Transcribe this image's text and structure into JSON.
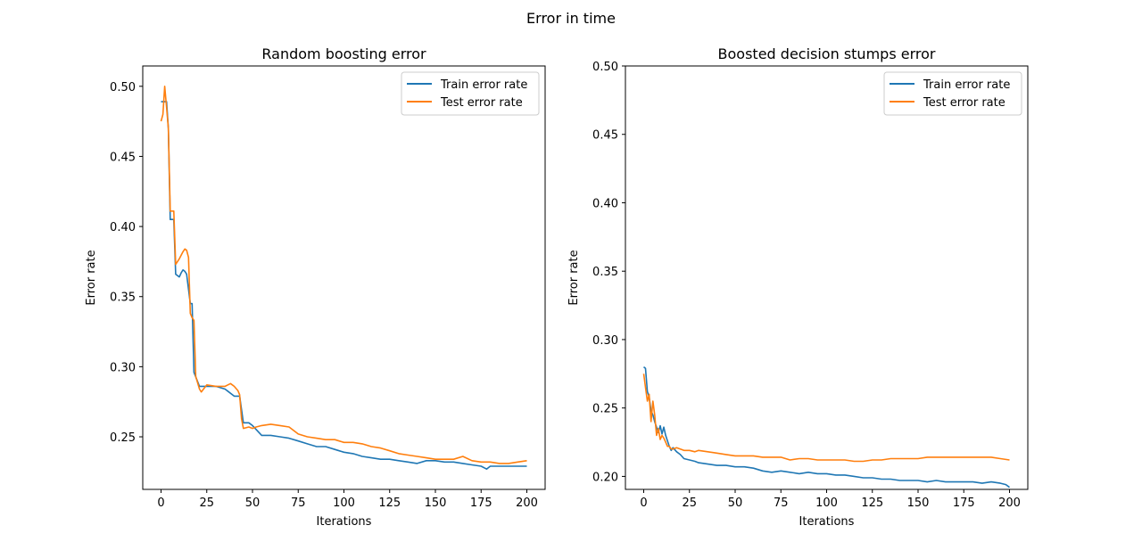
{
  "figure": {
    "suptitle": "Error in time"
  },
  "colors": {
    "train": "#1f77b4",
    "test": "#ff7f0e"
  },
  "chart_data": [
    {
      "type": "line",
      "title": "Random boosting error",
      "xlabel": "Iterations",
      "ylabel": "Error rate",
      "xlim": [
        -10,
        210
      ],
      "ylim": [
        0.2125,
        0.5145
      ],
      "xticks": [
        0,
        25,
        50,
        75,
        100,
        125,
        150,
        175,
        200
      ],
      "yticks": [
        0.25,
        0.3,
        0.35,
        0.4,
        0.45,
        0.5
      ],
      "ytick_labels": [
        "0.25",
        "0.30",
        "0.35",
        "0.40",
        "0.45",
        "0.50"
      ],
      "grid": false,
      "legend": "upper right",
      "series": [
        {
          "name": "Train error rate",
          "x": [
            0,
            3,
            4,
            5,
            7,
            8,
            10,
            11,
            12,
            13,
            14,
            16,
            17,
            18,
            21,
            25,
            30,
            35,
            40,
            43,
            45,
            48,
            50,
            55,
            60,
            65,
            70,
            75,
            80,
            85,
            90,
            95,
            100,
            105,
            110,
            115,
            120,
            125,
            130,
            135,
            140,
            145,
            150,
            155,
            160,
            165,
            170,
            175,
            178,
            180,
            185,
            190,
            195,
            200
          ],
          "y": [
            0.489,
            0.489,
            0.47,
            0.405,
            0.405,
            0.366,
            0.364,
            0.367,
            0.369,
            0.368,
            0.366,
            0.345,
            0.345,
            0.296,
            0.286,
            0.286,
            0.286,
            0.284,
            0.279,
            0.279,
            0.26,
            0.26,
            0.258,
            0.251,
            0.251,
            0.25,
            0.249,
            0.247,
            0.245,
            0.243,
            0.243,
            0.241,
            0.239,
            0.238,
            0.236,
            0.235,
            0.234,
            0.234,
            0.233,
            0.232,
            0.231,
            0.233,
            0.233,
            0.232,
            0.232,
            0.231,
            0.23,
            0.229,
            0.227,
            0.229,
            0.229,
            0.229,
            0.229,
            0.229
          ]
        },
        {
          "name": "Test error rate",
          "x": [
            0,
            1,
            2,
            3,
            4,
            5,
            7,
            8,
            10,
            12,
            13,
            14,
            15,
            16,
            17,
            18,
            19,
            21,
            22,
            25,
            30,
            35,
            38,
            40,
            42,
            43,
            44,
            45,
            48,
            50,
            52,
            55,
            60,
            65,
            70,
            75,
            80,
            85,
            90,
            95,
            100,
            105,
            110,
            115,
            120,
            125,
            130,
            135,
            140,
            145,
            150,
            155,
            160,
            165,
            170,
            175,
            180,
            185,
            190,
            195,
            200
          ],
          "y": [
            0.475,
            0.48,
            0.5,
            0.485,
            0.47,
            0.411,
            0.411,
            0.373,
            0.377,
            0.382,
            0.384,
            0.383,
            0.378,
            0.338,
            0.335,
            0.333,
            0.293,
            0.284,
            0.282,
            0.287,
            0.286,
            0.286,
            0.288,
            0.286,
            0.283,
            0.28,
            0.263,
            0.256,
            0.257,
            0.256,
            0.257,
            0.258,
            0.259,
            0.258,
            0.257,
            0.252,
            0.25,
            0.249,
            0.248,
            0.248,
            0.246,
            0.246,
            0.245,
            0.243,
            0.242,
            0.24,
            0.238,
            0.237,
            0.236,
            0.235,
            0.234,
            0.234,
            0.234,
            0.236,
            0.233,
            0.232,
            0.232,
            0.231,
            0.231,
            0.232,
            0.233
          ]
        }
      ]
    },
    {
      "type": "line",
      "title": "Boosted decision stumps error",
      "xlabel": "Iterations",
      "ylabel": "Error rate",
      "xlim": [
        -10,
        210
      ],
      "ylim": [
        0.1905,
        0.5
      ],
      "xticks": [
        0,
        25,
        50,
        75,
        100,
        125,
        150,
        175,
        200
      ],
      "yticks": [
        0.2,
        0.25,
        0.3,
        0.35,
        0.4,
        0.45,
        0.5
      ],
      "ytick_labels": [
        "0.20",
        "0.25",
        "0.30",
        "0.35",
        "0.40",
        "0.45",
        "0.50"
      ],
      "grid": false,
      "legend": "upper right",
      "series": [
        {
          "name": "Train error rate",
          "x": [
            0,
            1,
            2,
            3,
            4,
            5,
            6,
            7,
            8,
            9,
            10,
            11,
            12,
            13,
            14,
            15,
            16,
            18,
            20,
            22,
            25,
            28,
            30,
            35,
            40,
            45,
            50,
            55,
            60,
            65,
            70,
            75,
            80,
            85,
            90,
            95,
            100,
            105,
            110,
            115,
            120,
            125,
            130,
            135,
            140,
            145,
            150,
            155,
            160,
            165,
            170,
            175,
            180,
            185,
            190,
            195,
            198,
            200
          ],
          "y": [
            0.28,
            0.279,
            0.262,
            0.258,
            0.248,
            0.245,
            0.24,
            0.236,
            0.232,
            0.237,
            0.231,
            0.236,
            0.23,
            0.226,
            0.222,
            0.219,
            0.221,
            0.218,
            0.216,
            0.213,
            0.212,
            0.211,
            0.21,
            0.209,
            0.208,
            0.208,
            0.207,
            0.207,
            0.206,
            0.204,
            0.203,
            0.204,
            0.203,
            0.202,
            0.203,
            0.202,
            0.202,
            0.201,
            0.201,
            0.2,
            0.199,
            0.199,
            0.198,
            0.198,
            0.197,
            0.197,
            0.197,
            0.196,
            0.197,
            0.196,
            0.196,
            0.196,
            0.196,
            0.195,
            0.196,
            0.195,
            0.194,
            0.192
          ]
        },
        {
          "name": "Test error rate",
          "x": [
            0,
            1,
            2,
            3,
            4,
            5,
            6,
            7,
            8,
            9,
            10,
            11,
            12,
            13,
            14,
            15,
            16,
            18,
            20,
            22,
            25,
            28,
            30,
            35,
            40,
            45,
            50,
            55,
            60,
            65,
            70,
            75,
            80,
            85,
            90,
            95,
            100,
            105,
            110,
            115,
            120,
            125,
            130,
            135,
            140,
            145,
            150,
            155,
            160,
            165,
            170,
            175,
            180,
            185,
            190,
            195,
            200
          ],
          "y": [
            0.275,
            0.265,
            0.255,
            0.26,
            0.24,
            0.255,
            0.245,
            0.23,
            0.235,
            0.227,
            0.23,
            0.228,
            0.225,
            0.222,
            0.222,
            0.22,
            0.22,
            0.221,
            0.22,
            0.219,
            0.219,
            0.218,
            0.219,
            0.218,
            0.217,
            0.216,
            0.215,
            0.215,
            0.215,
            0.214,
            0.214,
            0.214,
            0.212,
            0.213,
            0.213,
            0.212,
            0.212,
            0.212,
            0.212,
            0.211,
            0.211,
            0.212,
            0.212,
            0.213,
            0.213,
            0.213,
            0.213,
            0.214,
            0.214,
            0.214,
            0.214,
            0.214,
            0.214,
            0.214,
            0.214,
            0.213,
            0.212
          ]
        }
      ]
    }
  ]
}
